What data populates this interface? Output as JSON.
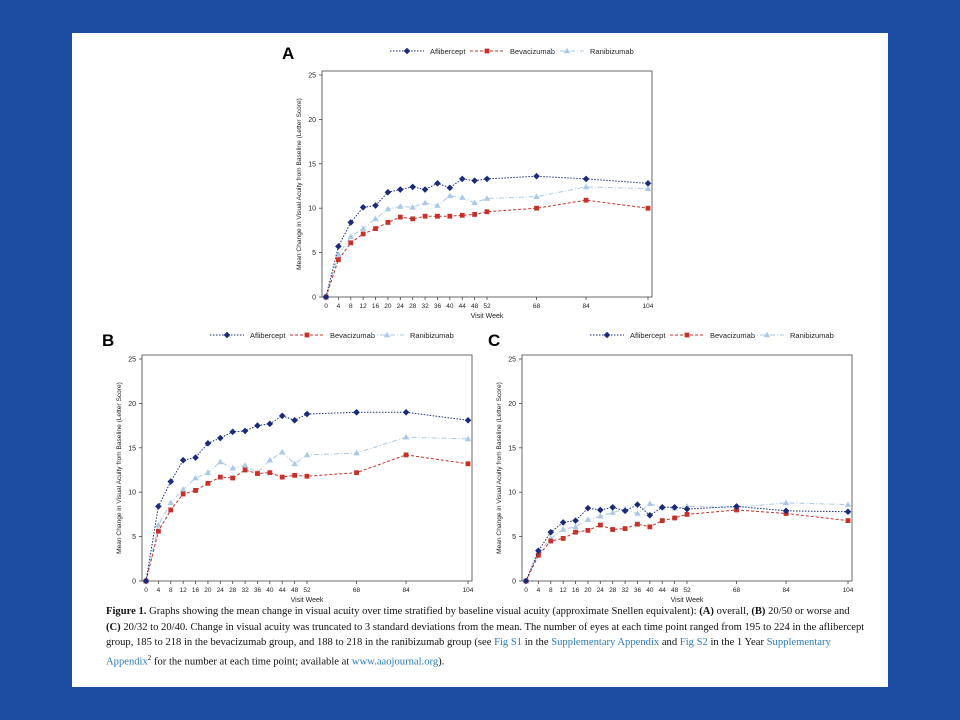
{
  "legend_labels": [
    "Aflibercept",
    "Bevacizumab",
    "Ranibizumab"
  ],
  "colors": {
    "aflibercept": "#1a2b7a",
    "bevacizumab": "#c8302a",
    "ranibizumab": "#a9c9e6",
    "background": "#1b4ea3"
  },
  "chart_data": [
    {
      "panel": "A",
      "type": "line",
      "xlabel": "Visit Week",
      "ylabel": "Mean Change in Visual Acuity from Baseline (Letter Score)",
      "ylim": [
        0,
        25
      ],
      "yticks": [
        0,
        5,
        10,
        15,
        20,
        25
      ],
      "x": [
        0,
        4,
        8,
        12,
        16,
        20,
        24,
        28,
        32,
        36,
        40,
        44,
        48,
        52,
        68,
        84,
        104
      ],
      "series": [
        {
          "name": "Aflibercept",
          "values": [
            0,
            5.7,
            8.4,
            10.1,
            10.3,
            11.8,
            12.1,
            12.4,
            12.1,
            12.8,
            12.3,
            13.3,
            13.1,
            13.3,
            13.6,
            13.3,
            12.8
          ]
        },
        {
          "name": "Bevacizumab",
          "values": [
            0,
            4.2,
            6.1,
            7.1,
            7.7,
            8.4,
            9.0,
            8.8,
            9.1,
            9.1,
            9.1,
            9.2,
            9.3,
            9.6,
            10.0,
            10.9,
            10.0
          ]
        },
        {
          "name": "Ranibizumab",
          "values": [
            0,
            4.8,
            6.8,
            7.7,
            8.8,
            9.9,
            10.2,
            10.1,
            10.6,
            10.3,
            11.4,
            11.2,
            10.6,
            11.1,
            11.3,
            12.4,
            12.2
          ]
        }
      ]
    },
    {
      "panel": "B",
      "type": "line",
      "xlabel": "Visit Week",
      "ylabel": "Mean Change in Visual Acuity from Baseline (Letter Score)",
      "ylim": [
        0,
        25
      ],
      "yticks": [
        0,
        5,
        10,
        15,
        20,
        25
      ],
      "x": [
        0,
        4,
        8,
        12,
        16,
        20,
        24,
        28,
        32,
        36,
        40,
        44,
        48,
        52,
        68,
        84,
        104
      ],
      "series": [
        {
          "name": "Aflibercept",
          "values": [
            0,
            8.4,
            11.2,
            13.6,
            13.9,
            15.5,
            16.1,
            16.8,
            16.9,
            17.5,
            17.7,
            18.6,
            18.1,
            18.8,
            19.0,
            19.0,
            18.1
          ]
        },
        {
          "name": "Bevacizumab",
          "values": [
            0,
            5.6,
            8.0,
            9.8,
            10.2,
            11.0,
            11.7,
            11.6,
            12.5,
            12.1,
            12.2,
            11.7,
            11.9,
            11.8,
            12.2,
            14.2,
            13.2
          ]
        },
        {
          "name": "Ranibizumab",
          "values": [
            0,
            6.3,
            8.8,
            10.3,
            11.6,
            12.2,
            13.4,
            12.7,
            13.0,
            12.2,
            13.6,
            14.5,
            13.2,
            14.2,
            14.4,
            16.2,
            16.0
          ]
        }
      ]
    },
    {
      "panel": "C",
      "type": "line",
      "xlabel": "Visit Week",
      "ylabel": "Mean Change in Visual Acuity from Baseline (Letter Score)",
      "ylim": [
        0,
        25
      ],
      "yticks": [
        0,
        5,
        10,
        15,
        20,
        25
      ],
      "x": [
        0,
        4,
        8,
        12,
        16,
        20,
        24,
        28,
        32,
        36,
        40,
        44,
        48,
        52,
        68,
        84,
        104
      ],
      "series": [
        {
          "name": "Aflibercept",
          "values": [
            0,
            3.4,
            5.5,
            6.6,
            6.8,
            8.2,
            8.0,
            8.3,
            7.9,
            8.6,
            7.4,
            8.3,
            8.3,
            8.1,
            8.4,
            7.9,
            7.8
          ]
        },
        {
          "name": "Bevacizumab",
          "values": [
            0,
            2.9,
            4.5,
            4.8,
            5.5,
            5.7,
            6.3,
            5.8,
            5.9,
            6.4,
            6.1,
            6.8,
            7.1,
            7.5,
            8.0,
            7.6,
            6.8
          ]
        },
        {
          "name": "Ranibizumab",
          "values": [
            0,
            3.2,
            4.8,
            5.8,
            6.1,
            6.9,
            7.3,
            7.7,
            8.1,
            7.6,
            8.7,
            8.3,
            8.2,
            8.4,
            8.3,
            8.8,
            8.6
          ]
        }
      ]
    }
  ],
  "caption": {
    "figure_label": "Figure 1.",
    "text_1": "Graphs showing the mean change in visual acuity over time stratified by baseline visual acuity (approximate Snellen equivalent):",
    "a_label": "(A)",
    "text_2": "overall,",
    "b_label": "(B)",
    "text_3": "20/50 or worse and",
    "c_label": "(C)",
    "text_4": "20/32 to 20/40. Change in visual acuity was truncated to 3 standard deviations from the mean. The number of eyes at each time point ranged from 195 to 224 in the aflibercept group, 185 to 218 in the bevacizumab group, and 188 to 218 in the ranibizumab group (see",
    "link_fig_s1": "Fig S1",
    "text_5": "in the",
    "link_supp_appendix": "Supplementary Appendix",
    "text_6": "and",
    "link_fig_s2": "Fig S2",
    "text_7": "in the 1 Year",
    "link_supp_appendix_2": "Supplementary Appendix",
    "superscript": "2",
    "text_8": "for the number at each time point; available at",
    "link_journal": "www.aaojournal.org",
    "text_9": ")."
  }
}
